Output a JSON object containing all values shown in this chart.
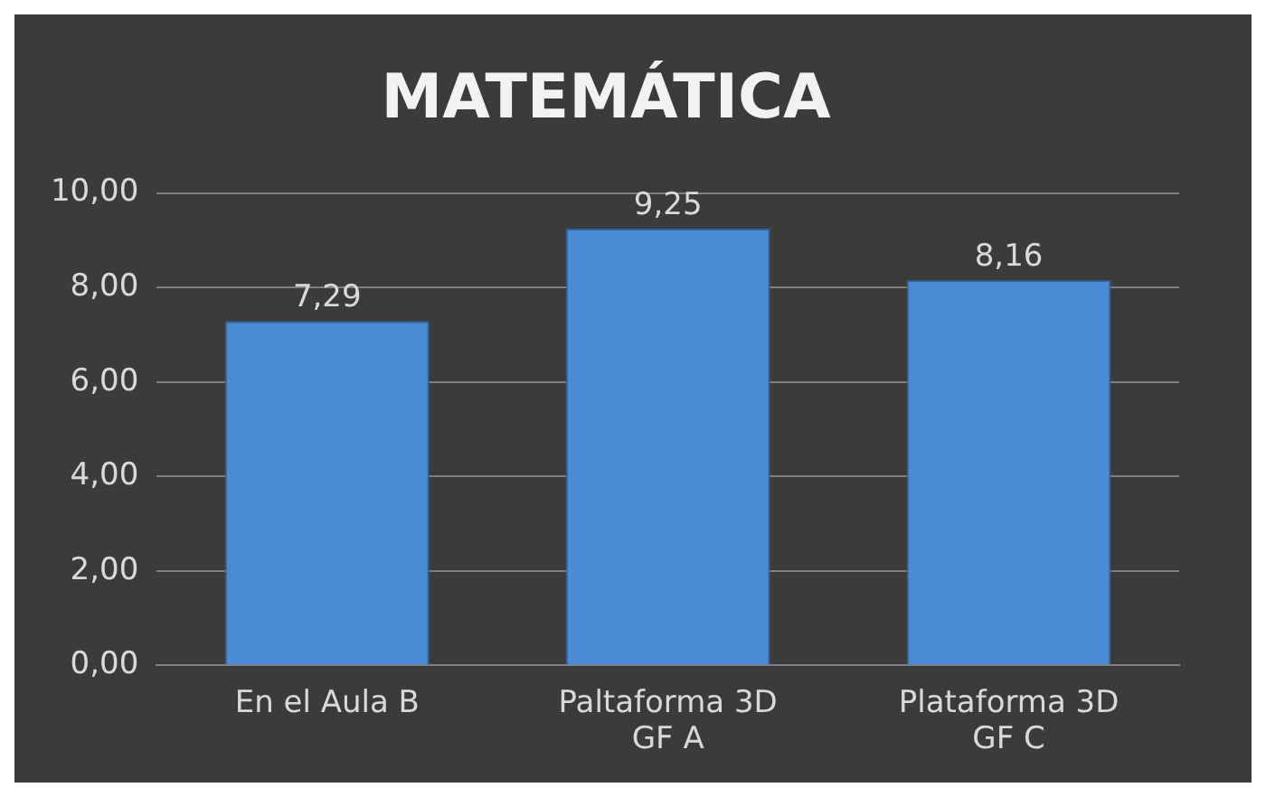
{
  "chart_data": {
    "type": "bar",
    "title": "MATEMÁTICA",
    "categories": [
      "En el Aula B",
      "Paltaforma 3D GF A",
      "Plataforma 3D GF C"
    ],
    "values": [
      7.29,
      9.25,
      8.16
    ],
    "value_labels": [
      "7,29",
      "9,25",
      "8,16"
    ],
    "color": "#4a8bd6",
    "ylim": [
      0,
      10
    ],
    "yticks": [
      {
        "value": 0,
        "label": "0,00"
      },
      {
        "value": 2,
        "label": "2,00"
      },
      {
        "value": 4,
        "label": "4,00"
      },
      {
        "value": 6,
        "label": "6,00"
      },
      {
        "value": 8,
        "label": "8,00"
      },
      {
        "value": 10,
        "label": "10,00"
      }
    ],
    "grid": "y"
  }
}
